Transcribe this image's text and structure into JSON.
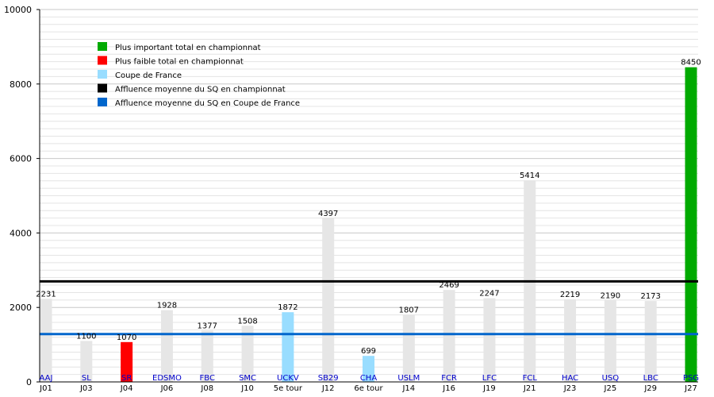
{
  "chart_data": {
    "type": "bar",
    "ylim": [
      0,
      10000
    ],
    "yticks": [
      0,
      2000,
      4000,
      6000,
      8000,
      10000
    ],
    "grid": true,
    "legend_position": "top-left",
    "colors": {
      "normal": "#e6e6e6",
      "max": "#00aa00",
      "min": "#ff0000",
      "cup": "#99ddff",
      "league_avg": "#000000",
      "cup_avg": "#0066cc"
    },
    "legend": [
      {
        "label": "Plus important total en championnat",
        "color": "#00aa00"
      },
      {
        "label": "Plus faible total en championnat",
        "color": "#ff0000"
      },
      {
        "label": "Coupe de France",
        "color": "#99ddff"
      },
      {
        "label": "Affluence moyenne du SQ en championnat",
        "color": "#000000"
      },
      {
        "label": "Affluence moyenne du SQ en Coupe de France",
        "color": "#0066cc"
      }
    ],
    "bars": [
      {
        "team": "AAJ",
        "round": "J01",
        "value": 2231,
        "kind": "normal"
      },
      {
        "team": "SL",
        "round": "J03",
        "value": 1100,
        "kind": "normal"
      },
      {
        "team": "SR",
        "round": "J04",
        "value": 1070,
        "kind": "min"
      },
      {
        "team": "EDSMO",
        "round": "J06",
        "value": 1928,
        "kind": "normal"
      },
      {
        "team": "FBC",
        "round": "J08",
        "value": 1377,
        "kind": "normal"
      },
      {
        "team": "SMC",
        "round": "J10",
        "value": 1508,
        "kind": "normal"
      },
      {
        "team": "UCKV",
        "round": "5e tour",
        "value": 1872,
        "kind": "cup"
      },
      {
        "team": "SB29",
        "round": "J12",
        "value": 4397,
        "kind": "normal"
      },
      {
        "team": "CHA",
        "round": "6e tour",
        "value": 699,
        "kind": "cup"
      },
      {
        "team": "USLM",
        "round": "J14",
        "value": 1807,
        "kind": "normal"
      },
      {
        "team": "FCR",
        "round": "J16",
        "value": 2469,
        "kind": "normal"
      },
      {
        "team": "LFC",
        "round": "J19",
        "value": 2247,
        "kind": "normal"
      },
      {
        "team": "FCL",
        "round": "J21",
        "value": 5414,
        "kind": "normal"
      },
      {
        "team": "HAC",
        "round": "J23",
        "value": 2219,
        "kind": "normal"
      },
      {
        "team": "USQ",
        "round": "J25",
        "value": 2190,
        "kind": "normal"
      },
      {
        "team": "LBC",
        "round": "J29",
        "value": 2173,
        "kind": "normal"
      },
      {
        "team": "PSG",
        "round": "J27",
        "value": 8450,
        "kind": "max"
      }
    ],
    "reference_lines": [
      {
        "name": "Affluence moyenne du SQ en championnat",
        "value": 2700,
        "color": "#000000"
      },
      {
        "name": "Affluence moyenne du SQ en Coupe de France",
        "value": 1285,
        "color": "#0066cc"
      }
    ]
  }
}
